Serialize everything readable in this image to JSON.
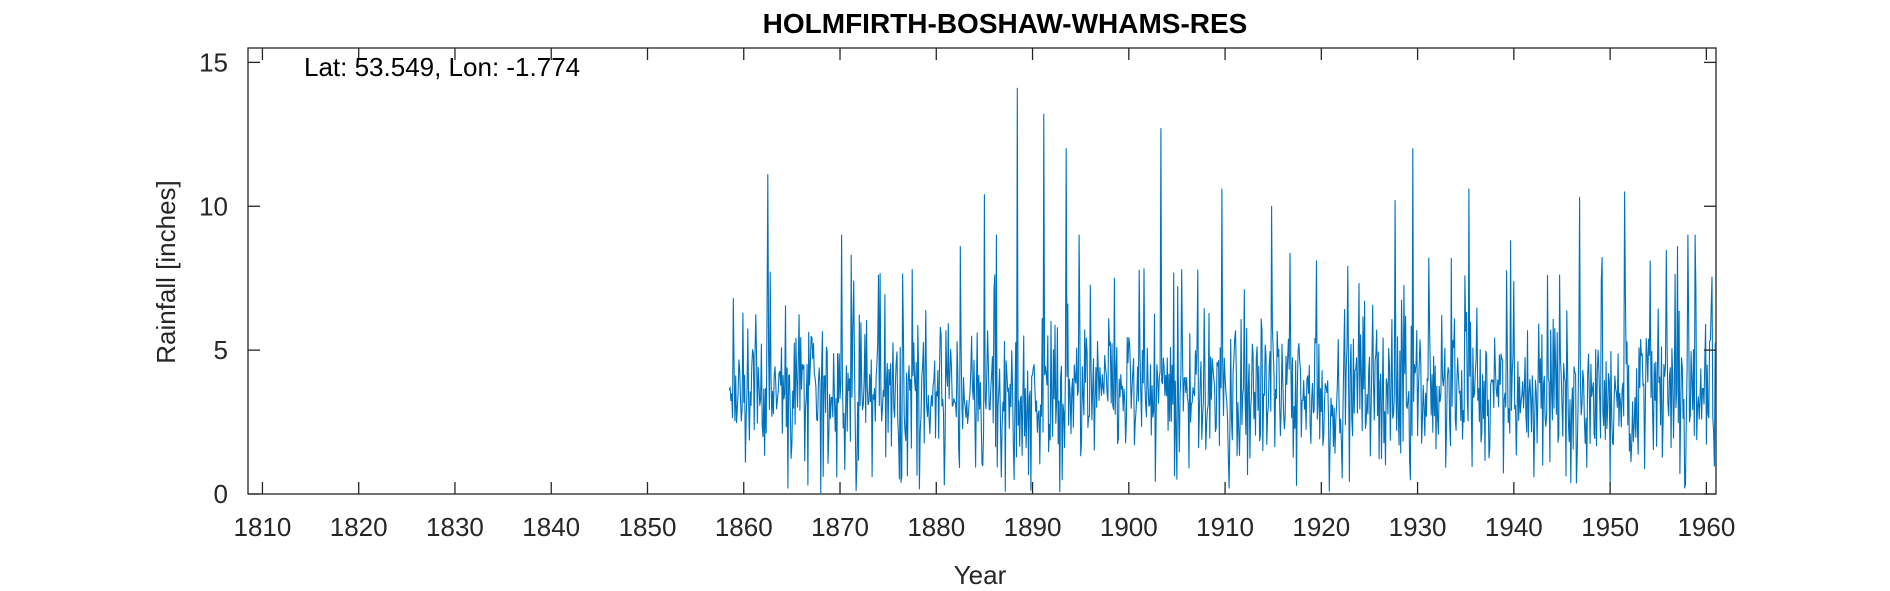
{
  "chart_data": {
    "type": "line",
    "title": "HOLMFIRTH-BOSHAW-WHAMS-RES",
    "annotation": "Lat: 53.549, Lon: -1.774",
    "xlabel": "Year",
    "ylabel": "Rainfall [inches]",
    "xlim": [
      1808.5,
      1961.0
    ],
    "ylim": [
      0,
      15.5
    ],
    "xticks": [
      1810,
      1820,
      1830,
      1840,
      1850,
      1860,
      1870,
      1880,
      1890,
      1900,
      1910,
      1920,
      1930,
      1940,
      1950,
      1960
    ],
    "yticks": [
      0,
      5,
      10,
      15
    ],
    "grid": false,
    "series_color": "#0072BD",
    "series": [
      {
        "frequency": "monthly",
        "x_start": 1858.5,
        "x": [
          1858.5,
          1862.5,
          1868.0,
          1870.2,
          1871.2,
          1874.0,
          1877.5,
          1882.5,
          1885.0,
          1888.4,
          1891.2,
          1893.5,
          1898.5,
          1903.3,
          1905.5,
          1909.7,
          1912.0,
          1914.8,
          1919.5,
          1920.8,
          1924.5,
          1927.7,
          1929.5,
          1932.5,
          1935.3,
          1939.7,
          1943.5,
          1946.8,
          1951.5,
          1954.2,
          1957.0,
          1958.8,
          1960.5
        ],
        "values": [
          3.6,
          11.1,
          0.0,
          9.0,
          8.3,
          7.6,
          7.8,
          8.6,
          10.4,
          14.1,
          13.2,
          12.0,
          7.5,
          12.7,
          7.8,
          10.6,
          7.1,
          10.0,
          8.1,
          0.1,
          6.7,
          10.2,
          12.0,
          6.2,
          10.6,
          8.8,
          7.6,
          10.3,
          10.5,
          8.1,
          8.6,
          9.0,
          6.5
        ],
        "display_min": 0.0,
        "display_max": 14.1,
        "typical_range": [
          1.0,
          6.5
        ],
        "mean": 3.5
      }
    ]
  }
}
